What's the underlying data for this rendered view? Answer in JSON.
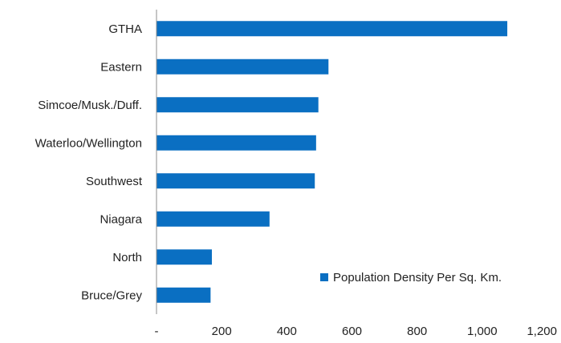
{
  "chart_data": {
    "type": "bar",
    "orientation": "horizontal",
    "categories": [
      "GTHA",
      "Eastern",
      "Simcoe/Musk./Duff.",
      "Waterloo/Wellington",
      "Southwest",
      "Niagara",
      "North",
      "Bruce/Grey"
    ],
    "series": [
      {
        "name": "Population Density Per Sq. Km.",
        "values": [
          1077,
          528,
          497,
          490,
          486,
          347,
          170,
          166
        ],
        "color": "#0a6fc2"
      }
    ],
    "xlim": [
      0,
      1200
    ],
    "xticks": [
      "-",
      "200",
      "400",
      "600",
      "800",
      "1,000",
      "1,200"
    ],
    "xtick_values": [
      0,
      200,
      400,
      600,
      800,
      1000,
      1200
    ],
    "grid": false,
    "legend": "lower-right inside"
  }
}
